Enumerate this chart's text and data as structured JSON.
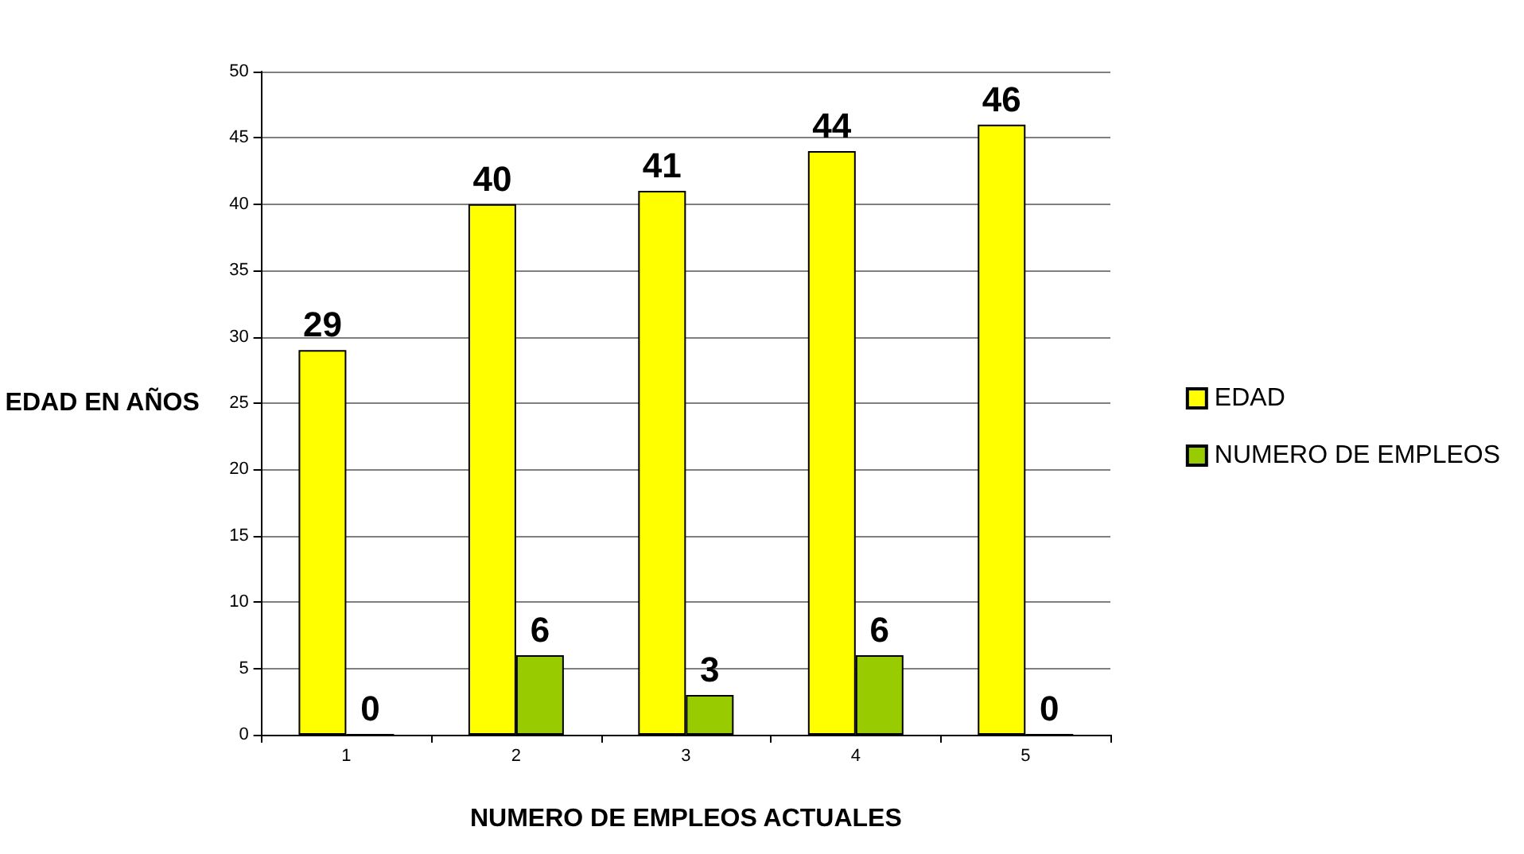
{
  "chart_data": {
    "type": "bar",
    "xlabel": "NUMERO DE EMPLEOS ACTUALES",
    "ylabel": "EDAD EN AÑOS",
    "categories": [
      "1",
      "2",
      "3",
      "4",
      "5"
    ],
    "series": [
      {
        "name": "EDAD",
        "color": "#ffff00",
        "values": [
          29,
          40,
          41,
          44,
          46
        ]
      },
      {
        "name": "NUMERO DE EMPLEOS",
        "color": "#99cc00",
        "values": [
          0,
          6,
          3,
          6,
          0
        ]
      }
    ],
    "ylim": [
      0,
      50
    ],
    "yticks": [
      0,
      5,
      10,
      15,
      20,
      25,
      30,
      35,
      40,
      45,
      50
    ],
    "grid": "y",
    "legend": "right",
    "data_labels": true
  }
}
